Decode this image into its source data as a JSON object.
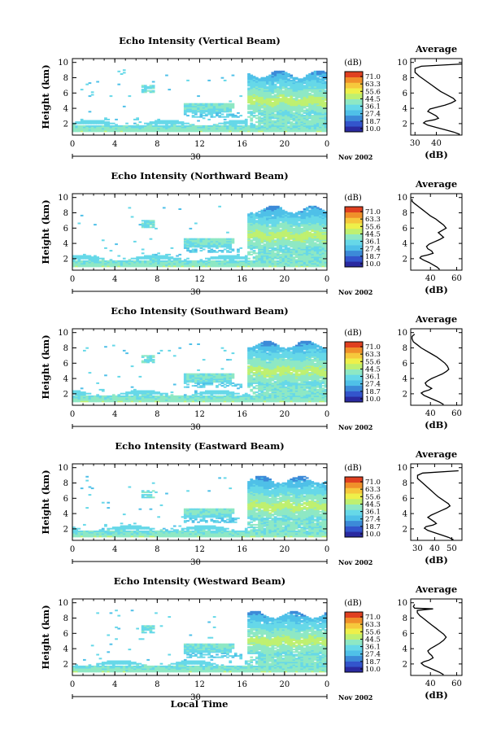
{
  "colors": {
    "scale": [
      "#2a2aa0",
      "#3355cc",
      "#3c8ad8",
      "#4fc0e8",
      "#66d8e8",
      "#8ee8c4",
      "#bff070",
      "#eef04a",
      "#f6c83c",
      "#f0902a",
      "#e04020"
    ]
  },
  "colorbar": {
    "unit": "(dB)",
    "ticks": [
      "71.0",
      "63.3",
      "55.6",
      "44.5",
      "36.1",
      "27.4",
      "18.7",
      "10.0"
    ],
    "range": [
      10.0,
      71.0
    ]
  },
  "common": {
    "height_label": "Height (km)",
    "y_ticks": [
      "2",
      "4",
      "6",
      "8",
      "10"
    ],
    "x_ticks": [
      "0",
      "4",
      "8",
      "12",
      "16",
      "20",
      "0"
    ],
    "day_label": "30",
    "month_label": "Nov 2002",
    "avg_title": "Average",
    "avg_xlabel": "(dB)",
    "xlabel": "Local Time"
  },
  "chart_data": [
    {
      "type": "heatmap",
      "title": "Echo Intensity (Vertical Beam)",
      "ylabel": "Height (km)",
      "xlim": [
        0,
        24
      ],
      "ylim": [
        0.5,
        10.5
      ],
      "avg": {
        "type": "line",
        "title": "Average",
        "xlabel": "(dB)",
        "x_ticks": [
          "30",
          "40"
        ],
        "xlim": [
          28,
          52
        ],
        "x": [
          52,
          33,
          30,
          30,
          32,
          34,
          36,
          38,
          40,
          42,
          44,
          46,
          48,
          49,
          47,
          44,
          41,
          37,
          36,
          38,
          40,
          41,
          39,
          35,
          34,
          36,
          40,
          44,
          48,
          51
        ],
        "y": [
          9.8,
          9.5,
          9.2,
          8.7,
          8.2,
          7.8,
          7.4,
          7.0,
          6.6,
          6.2,
          5.9,
          5.6,
          5.3,
          5.0,
          4.7,
          4.4,
          4.2,
          3.9,
          3.6,
          3.3,
          3.0,
          2.7,
          2.5,
          2.3,
          2.1,
          1.8,
          1.5,
          1.2,
          0.9,
          0.6
        ]
      }
    },
    {
      "type": "heatmap",
      "title": "Echo Intensity (Northward Beam)",
      "ylabel": "Height (km)",
      "xlim": [
        0,
        24
      ],
      "ylim": [
        0.5,
        10.5
      ],
      "avg": {
        "type": "line",
        "title": "Average",
        "xlabel": "(dB)",
        "x_ticks": [
          "40",
          "60"
        ],
        "xlim": [
          25,
          64
        ],
        "x": [
          26,
          26,
          28,
          31,
          34,
          37,
          40,
          44,
          47,
          50,
          52,
          49,
          46,
          48,
          50,
          47,
          43,
          39,
          37,
          38,
          41,
          42,
          38,
          33,
          32,
          35,
          39,
          42,
          45,
          47
        ],
        "y": [
          9.8,
          9.5,
          9.2,
          8.8,
          8.4,
          8.0,
          7.6,
          7.2,
          6.8,
          6.4,
          6.0,
          5.7,
          5.4,
          5.1,
          4.8,
          4.5,
          4.2,
          3.9,
          3.6,
          3.3,
          3.0,
          2.7,
          2.5,
          2.3,
          2.1,
          1.8,
          1.5,
          1.2,
          0.9,
          0.6
        ]
      }
    },
    {
      "type": "heatmap",
      "title": "Echo Intensity (Southward Beam)",
      "ylabel": "Height (km)",
      "xlim": [
        0,
        24
      ],
      "ylim": [
        0.5,
        10.5
      ],
      "avg": {
        "type": "line",
        "title": "Average",
        "xlabel": "(dB)",
        "x_ticks": [
          "40",
          "60"
        ],
        "xlim": [
          25,
          64
        ],
        "x": [
          28,
          26,
          26,
          27,
          30,
          33,
          37,
          41,
          45,
          48,
          51,
          53,
          54,
          52,
          49,
          45,
          41,
          38,
          36,
          37,
          39,
          41,
          39,
          35,
          33,
          35,
          39,
          43,
          47,
          50
        ],
        "y": [
          9.8,
          9.5,
          9.2,
          8.8,
          8.4,
          8.0,
          7.6,
          7.2,
          6.8,
          6.4,
          6.0,
          5.6,
          5.2,
          4.9,
          4.6,
          4.3,
          4.0,
          3.7,
          3.4,
          3.1,
          2.9,
          2.7,
          2.5,
          2.3,
          2.1,
          1.8,
          1.5,
          1.2,
          0.9,
          0.6
        ]
      }
    },
    {
      "type": "heatmap",
      "title": "Echo Intensity (Eastward Beam)",
      "ylabel": "Height (km)",
      "xlim": [
        0,
        24
      ],
      "ylim": [
        0.5,
        10.5
      ],
      "avg": {
        "type": "line",
        "title": "Average",
        "xlabel": "(dB)",
        "x_ticks": [
          "30",
          "40",
          "50"
        ],
        "xlim": [
          26,
          56
        ],
        "x": [
          54,
          33,
          30,
          30,
          32,
          34,
          36,
          38,
          40,
          42,
          44,
          46,
          48,
          49,
          47,
          44,
          41,
          38,
          36,
          38,
          40,
          41,
          39,
          35,
          34,
          36,
          40,
          44,
          48,
          51
        ],
        "y": [
          9.6,
          9.3,
          9.0,
          8.6,
          8.2,
          7.8,
          7.4,
          7.0,
          6.6,
          6.2,
          5.9,
          5.6,
          5.3,
          5.0,
          4.7,
          4.4,
          4.1,
          3.8,
          3.5,
          3.2,
          2.9,
          2.7,
          2.5,
          2.3,
          2.1,
          1.8,
          1.5,
          1.2,
          0.9,
          0.6
        ]
      }
    },
    {
      "type": "heatmap",
      "title": "Echo Intensity (Westward Beam)",
      "ylabel": "Height (km)",
      "xlim": [
        0,
        24
      ],
      "ylim": [
        0.5,
        10.5
      ],
      "avg": {
        "type": "line",
        "title": "Average",
        "xlabel": "(dB)",
        "x_ticks": [
          "40",
          "60"
        ],
        "xlim": [
          25,
          64
        ],
        "x": [
          28,
          27,
          28,
          42,
          30,
          30,
          32,
          35,
          38,
          41,
          44,
          47,
          50,
          52,
          50,
          47,
          43,
          40,
          38,
          39,
          41,
          42,
          39,
          35,
          33,
          35,
          39,
          43,
          47,
          50
        ],
        "y": [
          9.8,
          9.5,
          9.3,
          9.2,
          9.0,
          8.7,
          8.3,
          7.9,
          7.5,
          7.1,
          6.7,
          6.3,
          5.9,
          5.5,
          5.1,
          4.7,
          4.3,
          4.0,
          3.7,
          3.4,
          3.1,
          2.8,
          2.5,
          2.3,
          2.1,
          1.8,
          1.5,
          1.2,
          0.9,
          0.6
        ]
      }
    }
  ]
}
